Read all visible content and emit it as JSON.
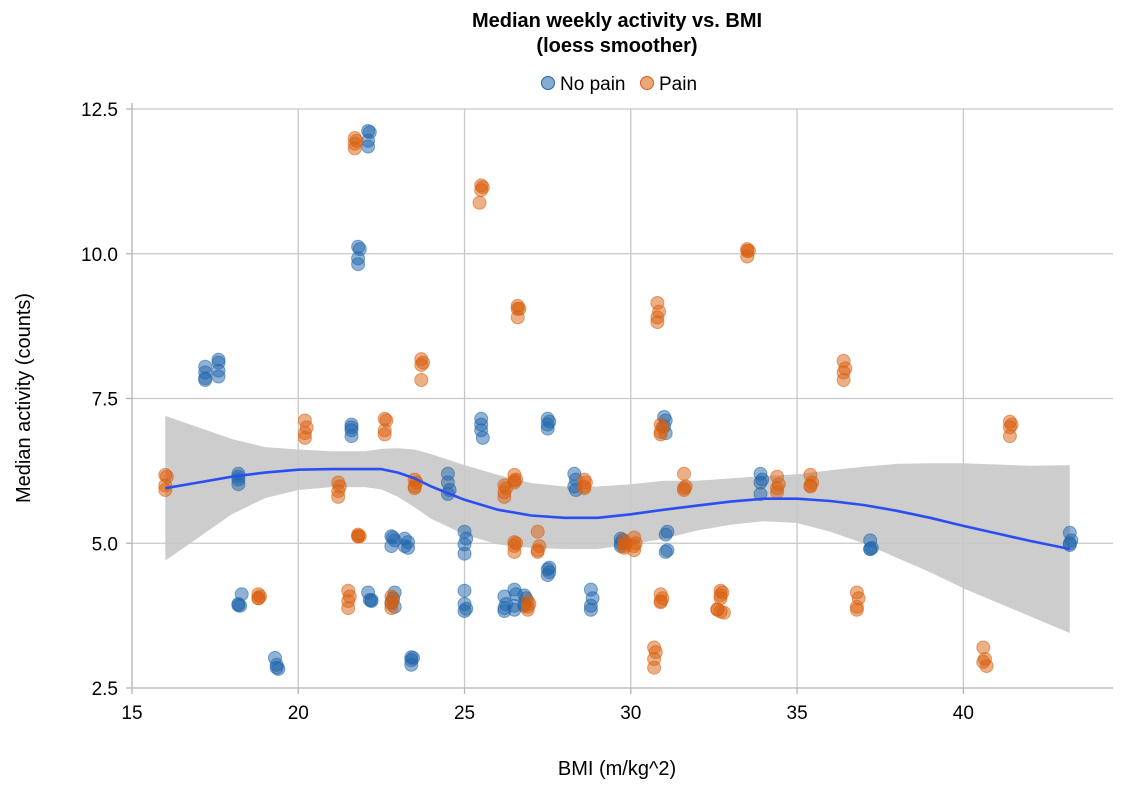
{
  "chart_data": {
    "type": "scatter",
    "title_lines": [
      "Median weekly activity vs. BMI",
      "(loess smoother)"
    ],
    "xlabel": "BMI (m/kg^2)",
    "ylabel": "Median activity (counts)",
    "xlim": [
      15,
      44.5
    ],
    "ylim": [
      2.5,
      12.5
    ],
    "x_ticks": [
      15,
      20,
      25,
      30,
      35,
      40
    ],
    "x_tick_labels": [
      "15",
      "20",
      "25",
      "30",
      "35",
      "40"
    ],
    "y_ticks": [
      2.5,
      5.0,
      7.5,
      10.0,
      12.5
    ],
    "y_tick_labels": [
      "2.5",
      "5.0",
      "7.5",
      "10.0",
      "12.5"
    ],
    "grid": true,
    "legend_position": "top-center",
    "series": [
      {
        "name": "No pain",
        "color": "#2166ac",
        "points": [
          [
            17.2,
            8.05
          ],
          [
            17.2,
            7.95
          ],
          [
            17.2,
            7.85
          ],
          [
            17.2,
            7.82
          ],
          [
            17.6,
            8.17
          ],
          [
            17.6,
            8.12
          ],
          [
            17.6,
            7.98
          ],
          [
            17.6,
            7.88
          ],
          [
            18.2,
            6.2
          ],
          [
            18.2,
            6.15
          ],
          [
            18.2,
            6.1
          ],
          [
            18.2,
            6.02
          ],
          [
            18.3,
            4.12
          ],
          [
            18.2,
            3.95
          ],
          [
            18.25,
            3.92
          ],
          [
            18.2,
            3.93
          ],
          [
            19.3,
            3.02
          ],
          [
            19.35,
            2.9
          ],
          [
            19.35,
            2.85
          ],
          [
            19.4,
            2.83
          ],
          [
            21.6,
            7.05
          ],
          [
            21.6,
            7.0
          ],
          [
            21.6,
            6.95
          ],
          [
            21.6,
            6.85
          ],
          [
            21.8,
            10.12
          ],
          [
            21.85,
            10.08
          ],
          [
            21.8,
            9.92
          ],
          [
            21.8,
            9.82
          ],
          [
            22.1,
            12.12
          ],
          [
            22.15,
            12.1
          ],
          [
            22.1,
            11.95
          ],
          [
            22.1,
            11.85
          ],
          [
            22.1,
            4.15
          ],
          [
            22.15,
            4.02
          ],
          [
            22.2,
            4.0
          ],
          [
            22.2,
            4.02
          ],
          [
            22.8,
            5.12
          ],
          [
            22.85,
            5.1
          ],
          [
            22.9,
            5.05
          ],
          [
            22.8,
            4.95
          ],
          [
            22.9,
            4.15
          ],
          [
            22.85,
            4.05
          ],
          [
            22.8,
            3.98
          ],
          [
            22.9,
            3.9
          ],
          [
            23.2,
            5.08
          ],
          [
            23.3,
            5.02
          ],
          [
            23.2,
            4.95
          ],
          [
            23.3,
            4.92
          ],
          [
            23.4,
            3.03
          ],
          [
            23.45,
            3.02
          ],
          [
            23.4,
            2.98
          ],
          [
            23.4,
            2.9
          ],
          [
            24.5,
            6.2
          ],
          [
            24.5,
            6.05
          ],
          [
            24.55,
            5.92
          ],
          [
            24.5,
            5.85
          ],
          [
            25.0,
            5.2
          ],
          [
            25.05,
            5.08
          ],
          [
            25.0,
            4.98
          ],
          [
            25.0,
            4.82
          ],
          [
            25.0,
            4.18
          ],
          [
            25.0,
            3.95
          ],
          [
            25.05,
            3.87
          ],
          [
            25.0,
            3.83
          ],
          [
            25.5,
            7.15
          ],
          [
            25.5,
            7.05
          ],
          [
            25.5,
            6.95
          ],
          [
            25.55,
            6.82
          ],
          [
            26.2,
            4.08
          ],
          [
            26.25,
            3.95
          ],
          [
            26.2,
            3.88
          ],
          [
            26.2,
            3.83
          ],
          [
            26.5,
            4.2
          ],
          [
            26.55,
            4.12
          ],
          [
            26.5,
            3.92
          ],
          [
            26.5,
            3.85
          ],
          [
            26.8,
            4.1
          ],
          [
            26.85,
            4.05
          ],
          [
            26.8,
            3.95
          ],
          [
            26.8,
            3.92
          ],
          [
            27.5,
            7.15
          ],
          [
            27.55,
            7.1
          ],
          [
            27.5,
            7.05
          ],
          [
            27.5,
            6.98
          ],
          [
            27.55,
            4.58
          ],
          [
            27.5,
            4.55
          ],
          [
            27.55,
            4.5
          ],
          [
            27.5,
            4.45
          ],
          [
            28.3,
            6.2
          ],
          [
            28.35,
            6.1
          ],
          [
            28.3,
            5.98
          ],
          [
            28.35,
            5.92
          ],
          [
            28.8,
            4.2
          ],
          [
            28.85,
            4.05
          ],
          [
            28.8,
            3.92
          ],
          [
            28.8,
            3.85
          ],
          [
            29.7,
            5.08
          ],
          [
            29.75,
            5.05
          ],
          [
            29.7,
            5.0
          ],
          [
            29.7,
            4.95
          ],
          [
            31.0,
            7.18
          ],
          [
            31.05,
            7.12
          ],
          [
            31.0,
            7.02
          ],
          [
            31.05,
            6.9
          ],
          [
            31.1,
            5.2
          ],
          [
            31.05,
            5.15
          ],
          [
            31.1,
            4.88
          ],
          [
            31.05,
            4.85
          ],
          [
            33.9,
            6.2
          ],
          [
            33.95,
            6.1
          ],
          [
            33.9,
            6.05
          ],
          [
            33.9,
            5.85
          ],
          [
            37.2,
            5.05
          ],
          [
            37.25,
            4.92
          ],
          [
            37.2,
            4.9
          ],
          [
            37.2,
            4.9
          ],
          [
            43.2,
            5.18
          ],
          [
            43.25,
            5.05
          ],
          [
            43.2,
            5.0
          ],
          [
            43.2,
            4.97
          ]
        ]
      },
      {
        "name": "Pain",
        "color": "#d95f0e",
        "points": [
          [
            16.0,
            6.18
          ],
          [
            16.05,
            6.15
          ],
          [
            16.0,
            6.0
          ],
          [
            16.0,
            5.92
          ],
          [
            18.8,
            4.12
          ],
          [
            18.85,
            4.08
          ],
          [
            18.8,
            4.05
          ],
          [
            18.8,
            4.05
          ],
          [
            20.2,
            7.12
          ],
          [
            20.25,
            7.0
          ],
          [
            20.2,
            6.9
          ],
          [
            20.2,
            6.82
          ],
          [
            21.2,
            6.05
          ],
          [
            21.25,
            5.98
          ],
          [
            21.2,
            5.9
          ],
          [
            21.2,
            5.8
          ],
          [
            21.5,
            4.18
          ],
          [
            21.55,
            4.08
          ],
          [
            21.5,
            4.0
          ],
          [
            21.5,
            3.88
          ],
          [
            21.7,
            12.0
          ],
          [
            21.75,
            11.95
          ],
          [
            21.7,
            11.9
          ],
          [
            21.7,
            11.82
          ],
          [
            21.8,
            5.15
          ],
          [
            21.85,
            5.12
          ],
          [
            21.8,
            5.12
          ],
          [
            21.8,
            5.12
          ],
          [
            22.6,
            7.15
          ],
          [
            22.65,
            7.12
          ],
          [
            22.6,
            6.95
          ],
          [
            22.6,
            6.88
          ],
          [
            22.8,
            4.08
          ],
          [
            22.85,
            4.02
          ],
          [
            22.8,
            3.95
          ],
          [
            22.8,
            3.88
          ],
          [
            23.5,
            6.1
          ],
          [
            23.55,
            6.05
          ],
          [
            23.5,
            5.98
          ],
          [
            23.5,
            5.95
          ],
          [
            23.7,
            8.18
          ],
          [
            23.75,
            8.12
          ],
          [
            23.7,
            8.08
          ],
          [
            23.7,
            7.82
          ],
          [
            25.5,
            11.18
          ],
          [
            25.55,
            11.15
          ],
          [
            25.5,
            11.1
          ],
          [
            25.45,
            10.88
          ],
          [
            26.2,
            6.0
          ],
          [
            26.25,
            5.95
          ],
          [
            26.2,
            5.88
          ],
          [
            26.2,
            5.8
          ],
          [
            26.5,
            6.18
          ],
          [
            26.55,
            6.1
          ],
          [
            26.5,
            6.08
          ],
          [
            26.5,
            6.05
          ],
          [
            26.6,
            9.1
          ],
          [
            26.65,
            9.05
          ],
          [
            26.6,
            9.05
          ],
          [
            26.6,
            8.9
          ],
          [
            26.5,
            5.02
          ],
          [
            26.55,
            5.0
          ],
          [
            26.5,
            4.95
          ],
          [
            26.5,
            4.85
          ],
          [
            26.9,
            4.0
          ],
          [
            26.95,
            3.95
          ],
          [
            26.9,
            3.9
          ],
          [
            26.9,
            3.85
          ],
          [
            27.2,
            5.2
          ],
          [
            27.25,
            4.95
          ],
          [
            27.2,
            4.88
          ],
          [
            27.2,
            4.85
          ],
          [
            28.6,
            6.1
          ],
          [
            28.65,
            6.05
          ],
          [
            28.6,
            5.98
          ],
          [
            28.6,
            5.95
          ],
          [
            29.8,
            5.05
          ],
          [
            29.85,
            5.0
          ],
          [
            29.8,
            4.95
          ],
          [
            29.8,
            4.92
          ],
          [
            30.1,
            5.1
          ],
          [
            30.15,
            5.0
          ],
          [
            30.1,
            4.95
          ],
          [
            30.1,
            4.88
          ],
          [
            30.7,
            3.2
          ],
          [
            30.75,
            3.12
          ],
          [
            30.7,
            3.0
          ],
          [
            30.7,
            2.85
          ],
          [
            30.8,
            9.15
          ],
          [
            30.85,
            9.0
          ],
          [
            30.8,
            8.9
          ],
          [
            30.8,
            8.82
          ],
          [
            30.9,
            7.05
          ],
          [
            30.95,
            7.0
          ],
          [
            30.9,
            6.92
          ],
          [
            30.9,
            6.88
          ],
          [
            30.9,
            4.12
          ],
          [
            30.95,
            4.05
          ],
          [
            30.9,
            3.98
          ],
          [
            30.9,
            4.0
          ],
          [
            31.6,
            6.2
          ],
          [
            31.65,
            5.98
          ],
          [
            31.6,
            5.95
          ],
          [
            31.6,
            5.92
          ],
          [
            32.6,
            3.85
          ],
          [
            32.7,
            3.82
          ],
          [
            32.8,
            3.8
          ],
          [
            32.6,
            3.86
          ],
          [
            32.7,
            4.18
          ],
          [
            32.75,
            4.15
          ],
          [
            32.7,
            4.1
          ],
          [
            32.7,
            4.05
          ],
          [
            33.5,
            10.08
          ],
          [
            33.55,
            10.05
          ],
          [
            33.5,
            10.05
          ],
          [
            33.5,
            9.95
          ],
          [
            34.4,
            6.15
          ],
          [
            34.45,
            6.02
          ],
          [
            34.4,
            5.95
          ],
          [
            34.4,
            5.88
          ],
          [
            35.4,
            6.18
          ],
          [
            35.45,
            6.05
          ],
          [
            35.4,
            6.0
          ],
          [
            35.4,
            5.98
          ],
          [
            36.4,
            8.15
          ],
          [
            36.45,
            8.02
          ],
          [
            36.4,
            7.95
          ],
          [
            36.4,
            7.82
          ],
          [
            36.8,
            4.15
          ],
          [
            36.85,
            4.05
          ],
          [
            36.8,
            3.9
          ],
          [
            36.8,
            3.85
          ],
          [
            40.6,
            3.2
          ],
          [
            40.65,
            3.0
          ],
          [
            40.6,
            2.95
          ],
          [
            40.7,
            2.88
          ],
          [
            41.4,
            7.1
          ],
          [
            41.45,
            7.05
          ],
          [
            41.4,
            7.0
          ],
          [
            41.4,
            6.85
          ]
        ]
      }
    ],
    "smoother": {
      "method": "loess",
      "line_color": "#2b4ef2",
      "band_color": "#c8c8c8",
      "x": [
        16,
        17,
        18,
        19,
        20,
        21,
        22,
        22.5,
        23,
        23.5,
        24,
        25,
        26,
        27,
        28,
        29,
        30,
        31,
        32,
        33,
        34,
        35,
        36,
        37,
        38,
        39,
        40,
        41,
        42,
        43.2
      ],
      "y": [
        5.95,
        6.05,
        6.15,
        6.22,
        6.27,
        6.28,
        6.28,
        6.28,
        6.22,
        6.12,
        5.98,
        5.75,
        5.58,
        5.48,
        5.44,
        5.44,
        5.5,
        5.58,
        5.65,
        5.72,
        5.77,
        5.77,
        5.73,
        5.66,
        5.56,
        5.44,
        5.3,
        5.17,
        5.04,
        4.9
      ],
      "ymin": [
        4.7,
        5.1,
        5.5,
        5.78,
        5.92,
        5.97,
        5.97,
        5.93,
        5.8,
        5.62,
        5.42,
        5.15,
        4.98,
        4.92,
        4.9,
        4.9,
        4.98,
        5.08,
        5.22,
        5.32,
        5.38,
        5.35,
        5.2,
        5.0,
        4.75,
        4.5,
        4.22,
        3.98,
        3.74,
        3.45
      ],
      "ymax": [
        7.2,
        7.0,
        6.8,
        6.66,
        6.62,
        6.59,
        6.59,
        6.63,
        6.64,
        6.62,
        6.54,
        6.35,
        6.18,
        6.04,
        5.98,
        5.98,
        6.02,
        6.08,
        6.08,
        6.12,
        6.16,
        6.19,
        6.26,
        6.32,
        6.37,
        6.38,
        6.38,
        6.36,
        6.34,
        6.35
      ]
    }
  }
}
